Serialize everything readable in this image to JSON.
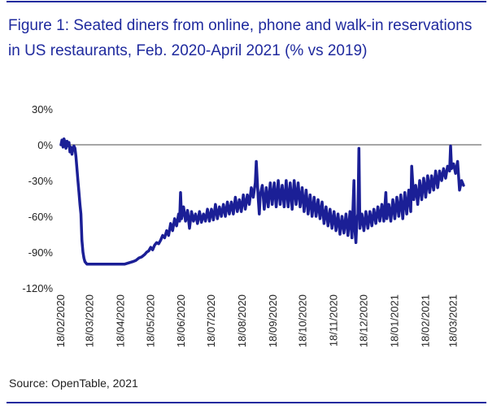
{
  "figure": {
    "title": "Figure 1: Seated diners from online, phone and walk-in reservations in US restaurants, Feb. 2020-April 2021 (% vs 2019)",
    "source": "Source: OpenTable, 2021"
  },
  "colors": {
    "line": "#1b1f96",
    "accent": "#1f2a9e",
    "zero_line": "#888888",
    "text": "#222222"
  },
  "chart_data": {
    "type": "line",
    "title": "Figure 1: Seated diners from online, phone and walk-in reservations in US restaurants, Feb. 2020-April 2021 (% vs 2019)",
    "xlabel": "",
    "ylabel": "",
    "ylim": [
      -120,
      30
    ],
    "xlim": [
      "2020-02-18",
      "2021-04-15"
    ],
    "y_ticks": [
      30,
      0,
      -30,
      -60,
      -90,
      -120
    ],
    "y_tick_labels": [
      "30%",
      "0%",
      "-30%",
      "-60%",
      "-90%",
      "-120%"
    ],
    "x_ticks": [
      "2020-02-18",
      "2020-03-18",
      "2020-04-18",
      "2020-05-18",
      "2020-06-18",
      "2020-07-18",
      "2020-08-18",
      "2020-09-18",
      "2020-10-18",
      "2020-11-18",
      "2020-12-18",
      "2021-01-18",
      "2021-02-18",
      "2021-03-18"
    ],
    "x_tick_labels": [
      "18/02/2020",
      "18/03/2020",
      "18/04/2020",
      "18/05/2020",
      "18/06/2020",
      "18/07/2020",
      "18/08/2020",
      "18/09/2020",
      "18/10/2020",
      "18/11/2020",
      "18/12/2020",
      "18/01/2021",
      "18/02/2021",
      "18/03/2021"
    ],
    "reference_line": 0,
    "grid": false,
    "legend": "none",
    "series": [
      {
        "points": [
          [
            "2020-02-18",
            0
          ],
          [
            "2020-02-19",
            4
          ],
          [
            "2020-02-20",
            -2
          ],
          [
            "2020-02-21",
            5
          ],
          [
            "2020-02-22",
            2
          ],
          [
            "2020-02-23",
            -3
          ],
          [
            "2020-02-24",
            3
          ],
          [
            "2020-02-25",
            -1
          ],
          [
            "2020-02-26",
            2
          ],
          [
            "2020-02-27",
            -6
          ],
          [
            "2020-02-28",
            -2
          ],
          [
            "2020-02-29",
            -8
          ],
          [
            "2020-03-01",
            -3
          ],
          [
            "2020-03-02",
            -1
          ],
          [
            "2020-03-03",
            -3
          ],
          [
            "2020-03-04",
            -10
          ],
          [
            "2020-03-05",
            -20
          ],
          [
            "2020-03-06",
            -30
          ],
          [
            "2020-03-07",
            -40
          ],
          [
            "2020-03-08",
            -50
          ],
          [
            "2020-03-09",
            -58
          ],
          [
            "2020-03-10",
            -80
          ],
          [
            "2020-03-11",
            -90
          ],
          [
            "2020-03-12",
            -95
          ],
          [
            "2020-03-13",
            -98
          ],
          [
            "2020-03-15",
            -100
          ],
          [
            "2020-03-25",
            -100
          ],
          [
            "2020-04-05",
            -100
          ],
          [
            "2020-04-15",
            -100
          ],
          [
            "2020-04-22",
            -100
          ],
          [
            "2020-04-26",
            -99
          ],
          [
            "2020-04-30",
            -98
          ],
          [
            "2020-05-03",
            -97
          ],
          [
            "2020-05-06",
            -95
          ],
          [
            "2020-05-09",
            -94
          ],
          [
            "2020-05-12",
            -92
          ],
          [
            "2020-05-14",
            -90
          ],
          [
            "2020-05-16",
            -89
          ],
          [
            "2020-05-18",
            -86
          ],
          [
            "2020-05-20",
            -88
          ],
          [
            "2020-05-22",
            -84
          ],
          [
            "2020-05-24",
            -82
          ],
          [
            "2020-05-26",
            -83
          ],
          [
            "2020-05-28",
            -80
          ],
          [
            "2020-05-30",
            -76
          ],
          [
            "2020-06-01",
            -78
          ],
          [
            "2020-06-03",
            -72
          ],
          [
            "2020-06-05",
            -76
          ],
          [
            "2020-06-07",
            -66
          ],
          [
            "2020-06-09",
            -72
          ],
          [
            "2020-06-11",
            -62
          ],
          [
            "2020-06-13",
            -68
          ],
          [
            "2020-06-15",
            -58
          ],
          [
            "2020-06-16",
            -64
          ],
          [
            "2020-06-17",
            -40
          ],
          [
            "2020-06-18",
            -62
          ],
          [
            "2020-06-20",
            -52
          ],
          [
            "2020-06-22",
            -64
          ],
          [
            "2020-06-24",
            -55
          ],
          [
            "2020-06-26",
            -70
          ],
          [
            "2020-06-28",
            -56
          ],
          [
            "2020-06-30",
            -64
          ],
          [
            "2020-07-02",
            -58
          ],
          [
            "2020-07-04",
            -66
          ],
          [
            "2020-07-06",
            -56
          ],
          [
            "2020-07-08",
            -65
          ],
          [
            "2020-07-10",
            -58
          ],
          [
            "2020-07-12",
            -64
          ],
          [
            "2020-07-14",
            -54
          ],
          [
            "2020-07-16",
            -64
          ],
          [
            "2020-07-18",
            -54
          ],
          [
            "2020-07-20",
            -63
          ],
          [
            "2020-07-22",
            -50
          ],
          [
            "2020-07-24",
            -62
          ],
          [
            "2020-07-26",
            -52
          ],
          [
            "2020-07-28",
            -60
          ],
          [
            "2020-07-30",
            -50
          ],
          [
            "2020-08-01",
            -60
          ],
          [
            "2020-08-03",
            -48
          ],
          [
            "2020-08-05",
            -58
          ],
          [
            "2020-08-07",
            -48
          ],
          [
            "2020-08-09",
            -58
          ],
          [
            "2020-08-11",
            -44
          ],
          [
            "2020-08-13",
            -56
          ],
          [
            "2020-08-15",
            -46
          ],
          [
            "2020-08-17",
            -56
          ],
          [
            "2020-08-19",
            -42
          ],
          [
            "2020-08-21",
            -54
          ],
          [
            "2020-08-23",
            -42
          ],
          [
            "2020-08-25",
            -50
          ],
          [
            "2020-08-27",
            -36
          ],
          [
            "2020-08-29",
            -44
          ],
          [
            "2020-08-31",
            -32
          ],
          [
            "2020-09-01",
            -14
          ],
          [
            "2020-09-02",
            -30
          ],
          [
            "2020-09-03",
            -46
          ],
          [
            "2020-09-04",
            -58
          ],
          [
            "2020-09-05",
            -42
          ],
          [
            "2020-09-07",
            -34
          ],
          [
            "2020-09-09",
            -54
          ],
          [
            "2020-09-11",
            -36
          ],
          [
            "2020-09-13",
            -52
          ],
          [
            "2020-09-15",
            -32
          ],
          [
            "2020-09-17",
            -50
          ],
          [
            "2020-09-19",
            -32
          ],
          [
            "2020-09-21",
            -52
          ],
          [
            "2020-09-23",
            -30
          ],
          [
            "2020-09-25",
            -50
          ],
          [
            "2020-09-27",
            -34
          ],
          [
            "2020-09-29",
            -52
          ],
          [
            "2020-10-01",
            -30
          ],
          [
            "2020-10-03",
            -52
          ],
          [
            "2020-10-05",
            -32
          ],
          [
            "2020-10-07",
            -54
          ],
          [
            "2020-10-09",
            -30
          ],
          [
            "2020-10-11",
            -50
          ],
          [
            "2020-10-13",
            -32
          ],
          [
            "2020-10-15",
            -52
          ],
          [
            "2020-10-17",
            -36
          ],
          [
            "2020-10-19",
            -56
          ],
          [
            "2020-10-21",
            -38
          ],
          [
            "2020-10-23",
            -58
          ],
          [
            "2020-10-25",
            -42
          ],
          [
            "2020-10-27",
            -60
          ],
          [
            "2020-10-29",
            -44
          ],
          [
            "2020-10-31",
            -60
          ],
          [
            "2020-11-02",
            -46
          ],
          [
            "2020-11-04",
            -62
          ],
          [
            "2020-11-06",
            -48
          ],
          [
            "2020-11-08",
            -66
          ],
          [
            "2020-11-10",
            -52
          ],
          [
            "2020-11-12",
            -68
          ],
          [
            "2020-11-14",
            -54
          ],
          [
            "2020-11-16",
            -70
          ],
          [
            "2020-11-18",
            -56
          ],
          [
            "2020-11-20",
            -72
          ],
          [
            "2020-11-22",
            -58
          ],
          [
            "2020-11-24",
            -75
          ],
          [
            "2020-11-26",
            -60
          ],
          [
            "2020-11-28",
            -74
          ],
          [
            "2020-11-30",
            -58
          ],
          [
            "2020-12-02",
            -76
          ],
          [
            "2020-12-04",
            -56
          ],
          [
            "2020-12-06",
            -78
          ],
          [
            "2020-12-08",
            -30
          ],
          [
            "2020-12-09",
            -72
          ],
          [
            "2020-12-10",
            -82
          ],
          [
            "2020-12-11",
            -62
          ],
          [
            "2020-12-12",
            -58
          ],
          [
            "2020-12-13",
            -3
          ],
          [
            "2020-12-14",
            -70
          ],
          [
            "2020-12-16",
            -58
          ],
          [
            "2020-12-18",
            -72
          ],
          [
            "2020-12-20",
            -56
          ],
          [
            "2020-12-22",
            -70
          ],
          [
            "2020-12-24",
            -56
          ],
          [
            "2020-12-26",
            -68
          ],
          [
            "2020-12-28",
            -54
          ],
          [
            "2020-12-30",
            -66
          ],
          [
            "2021-01-01",
            -52
          ],
          [
            "2021-01-03",
            -64
          ],
          [
            "2021-01-05",
            -50
          ],
          [
            "2021-01-07",
            -64
          ],
          [
            "2021-01-09",
            -40
          ],
          [
            "2021-01-10",
            -62
          ],
          [
            "2021-01-12",
            -50
          ],
          [
            "2021-01-14",
            -64
          ],
          [
            "2021-01-16",
            -46
          ],
          [
            "2021-01-18",
            -62
          ],
          [
            "2021-01-20",
            -44
          ],
          [
            "2021-01-22",
            -60
          ],
          [
            "2021-01-24",
            -42
          ],
          [
            "2021-01-26",
            -62
          ],
          [
            "2021-01-28",
            -40
          ],
          [
            "2021-01-30",
            -58
          ],
          [
            "2021-02-01",
            -38
          ],
          [
            "2021-02-03",
            -56
          ],
          [
            "2021-02-04",
            -18
          ],
          [
            "2021-02-06",
            -46
          ],
          [
            "2021-02-08",
            -34
          ],
          [
            "2021-02-10",
            -50
          ],
          [
            "2021-02-12",
            -30
          ],
          [
            "2021-02-14",
            -46
          ],
          [
            "2021-02-16",
            -28
          ],
          [
            "2021-02-18",
            -44
          ],
          [
            "2021-02-20",
            -26
          ],
          [
            "2021-02-22",
            -40
          ],
          [
            "2021-02-24",
            -26
          ],
          [
            "2021-02-26",
            -38
          ],
          [
            "2021-02-28",
            -22
          ],
          [
            "2021-03-02",
            -36
          ],
          [
            "2021-03-04",
            -22
          ],
          [
            "2021-03-06",
            -30
          ],
          [
            "2021-03-08",
            -20
          ],
          [
            "2021-03-10",
            -28
          ],
          [
            "2021-03-12",
            -18
          ],
          [
            "2021-03-14",
            -22
          ],
          [
            "2021-03-15",
            -1
          ],
          [
            "2021-03-16",
            -20
          ],
          [
            "2021-03-18",
            -16
          ],
          [
            "2021-03-20",
            -24
          ],
          [
            "2021-03-22",
            -14
          ],
          [
            "2021-03-24",
            -38
          ],
          [
            "2021-03-26",
            -30
          ],
          [
            "2021-03-28",
            -34
          ]
        ]
      }
    ]
  }
}
